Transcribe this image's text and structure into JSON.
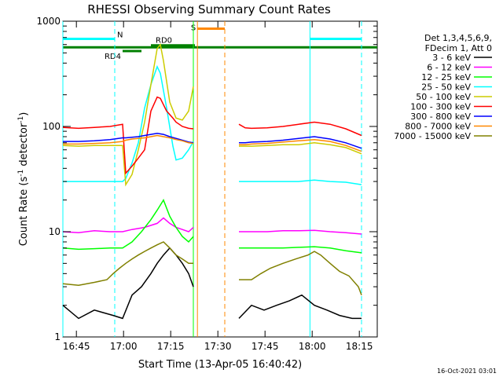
{
  "chart_data": {
    "type": "line",
    "title": "RHESSI Observing Summary Count Rates",
    "xlabel": "Start Time (13-Apr-05 16:40:42)",
    "ylabel_main": "Count Rate (s",
    "ylabel_sup1": "-1",
    "ylabel_mid": " detector",
    "ylabel_sup2": "-1",
    "ylabel_end": ")",
    "x_unit": "minutes since 16:40:42",
    "xlim": [
      0,
      100
    ],
    "ylim": [
      1,
      1000
    ],
    "y_scale": "log",
    "x_ticks": [
      {
        "label": "16:45",
        "at": 4.3
      },
      {
        "label": "17:00",
        "at": 19.3
      },
      {
        "label": "17:15",
        "at": 34.3
      },
      {
        "label": "17:30",
        "at": 49.3
      },
      {
        "label": "17:45",
        "at": 64.3
      },
      {
        "label": "18:00",
        "at": 79.3
      },
      {
        "label": "18:15",
        "at": 94.3
      }
    ],
    "y_ticks": [
      {
        "label": "1",
        "at": 1
      },
      {
        "label": "10",
        "at": 10
      },
      {
        "label": "100",
        "at": 100
      },
      {
        "label": "1000",
        "at": 1000
      }
    ],
    "legend_header": [
      "Det 1,3,4,5,6,9,",
      "FDecim 1, Att 0"
    ],
    "legend_position": "right",
    "series": [
      {
        "name": "3 - 6 keV",
        "color": "#000000",
        "points": [
          [
            0,
            2
          ],
          [
            5,
            1.5
          ],
          [
            10,
            1.8
          ],
          [
            16,
            1.6
          ],
          [
            19,
            1.5
          ],
          [
            22,
            2.5
          ],
          [
            25,
            3
          ],
          [
            28,
            4
          ],
          [
            30,
            5
          ],
          [
            32,
            6
          ],
          [
            34,
            7
          ],
          [
            36,
            6
          ],
          [
            38,
            5
          ],
          [
            40,
            4
          ],
          [
            41.5,
            3
          ],
          [
            56,
            1.5
          ],
          [
            60,
            2
          ],
          [
            64,
            1.8
          ],
          [
            68,
            2
          ],
          [
            72,
            2.2
          ],
          [
            76,
            2.5
          ],
          [
            80,
            2
          ],
          [
            84,
            1.8
          ],
          [
            88,
            1.6
          ],
          [
            92,
            1.5
          ],
          [
            95,
            1.5
          ]
        ]
      },
      {
        "name": "6 - 12 keV",
        "color": "#ff00ff",
        "points": [
          [
            0,
            10
          ],
          [
            5,
            9.8
          ],
          [
            10,
            10.2
          ],
          [
            15,
            10
          ],
          [
            19,
            10
          ],
          [
            22,
            10.5
          ],
          [
            26,
            11
          ],
          [
            30,
            12
          ],
          [
            32,
            13.5
          ],
          [
            34,
            12
          ],
          [
            36,
            11
          ],
          [
            38,
            10.5
          ],
          [
            40,
            10
          ],
          [
            41.5,
            11
          ],
          [
            56,
            10
          ],
          [
            60,
            10
          ],
          [
            65,
            10
          ],
          [
            70,
            10.2
          ],
          [
            75,
            10.2
          ],
          [
            80,
            10.3
          ],
          [
            85,
            10
          ],
          [
            90,
            9.8
          ],
          [
            95,
            9.5
          ]
        ]
      },
      {
        "name": "12 - 25 keV",
        "color": "#00ff00",
        "points": [
          [
            0,
            7
          ],
          [
            5,
            6.8
          ],
          [
            10,
            6.9
          ],
          [
            15,
            7
          ],
          [
            19,
            7
          ],
          [
            22,
            8
          ],
          [
            25,
            10
          ],
          [
            28,
            13
          ],
          [
            30,
            16
          ],
          [
            32,
            20
          ],
          [
            34,
            14
          ],
          [
            36,
            11
          ],
          [
            38,
            9
          ],
          [
            40,
            8
          ],
          [
            41.5,
            9
          ],
          [
            56,
            7
          ],
          [
            60,
            7
          ],
          [
            65,
            7
          ],
          [
            70,
            7
          ],
          [
            75,
            7.1
          ],
          [
            80,
            7.2
          ],
          [
            85,
            7
          ],
          [
            90,
            6.6
          ],
          [
            95,
            6.3
          ]
        ]
      },
      {
        "name": "25 - 50 keV",
        "color": "#00ffff",
        "points": [
          [
            0,
            30
          ],
          [
            5,
            30
          ],
          [
            10,
            30
          ],
          [
            15,
            30
          ],
          [
            19,
            30
          ],
          [
            20,
            32
          ],
          [
            22,
            45
          ],
          [
            24,
            70
          ],
          [
            26,
            150
          ],
          [
            28,
            250
          ],
          [
            30,
            370
          ],
          [
            31,
            320
          ],
          [
            33,
            150
          ],
          [
            35,
            65
          ],
          [
            36,
            48
          ],
          [
            38,
            50
          ],
          [
            40,
            60
          ],
          [
            41.5,
            72
          ],
          [
            56,
            30
          ],
          [
            60,
            30
          ],
          [
            65,
            30
          ],
          [
            70,
            30
          ],
          [
            75,
            30
          ],
          [
            80,
            31
          ],
          [
            85,
            30
          ],
          [
            90,
            29.5
          ],
          [
            95,
            28
          ]
        ]
      },
      {
        "name": "50 - 100 keV",
        "color": "#cccc00",
        "points": [
          [
            0,
            66
          ],
          [
            5,
            65
          ],
          [
            10,
            66
          ],
          [
            15,
            66
          ],
          [
            19,
            66
          ],
          [
            20,
            28
          ],
          [
            22,
            35
          ],
          [
            24,
            60
          ],
          [
            26,
            110
          ],
          [
            28,
            250
          ],
          [
            30,
            550
          ],
          [
            31,
            600
          ],
          [
            32,
            420
          ],
          [
            34,
            170
          ],
          [
            36,
            120
          ],
          [
            38,
            115
          ],
          [
            40,
            140
          ],
          [
            41,
            200
          ],
          [
            41.5,
            240
          ],
          [
            56,
            65
          ],
          [
            60,
            65
          ],
          [
            65,
            66
          ],
          [
            70,
            67
          ],
          [
            75,
            67
          ],
          [
            80,
            70
          ],
          [
            85,
            67
          ],
          [
            90,
            63
          ],
          [
            95,
            55
          ]
        ]
      },
      {
        "name": "100 - 300 keV",
        "color": "#ff0000",
        "points": [
          [
            0,
            98
          ],
          [
            5,
            96
          ],
          [
            10,
            98
          ],
          [
            15,
            100
          ],
          [
            19,
            105
          ],
          [
            20,
            36
          ],
          [
            22,
            42
          ],
          [
            24,
            50
          ],
          [
            26,
            60
          ],
          [
            28,
            140
          ],
          [
            30,
            190
          ],
          [
            31,
            185
          ],
          [
            33,
            140
          ],
          [
            35,
            120
          ],
          [
            36,
            110
          ],
          [
            38,
            100
          ],
          [
            40,
            96
          ],
          [
            41.5,
            95
          ],
          [
            56,
            105
          ],
          [
            58,
            97
          ],
          [
            60,
            96
          ],
          [
            65,
            97
          ],
          [
            70,
            100
          ],
          [
            75,
            105
          ],
          [
            80,
            110
          ],
          [
            85,
            105
          ],
          [
            90,
            95
          ],
          [
            95,
            82
          ]
        ]
      },
      {
        "name": "300 - 800 keV",
        "color": "#0000ff",
        "points": [
          [
            0,
            72
          ],
          [
            5,
            72
          ],
          [
            10,
            73
          ],
          [
            15,
            75
          ],
          [
            19,
            78
          ],
          [
            20,
            78
          ],
          [
            22,
            79
          ],
          [
            24,
            80
          ],
          [
            26,
            82
          ],
          [
            28,
            84
          ],
          [
            30,
            86
          ],
          [
            32,
            84
          ],
          [
            34,
            80
          ],
          [
            36,
            77
          ],
          [
            38,
            74
          ],
          [
            40,
            71
          ],
          [
            41.5,
            70
          ],
          [
            56,
            70
          ],
          [
            58,
            70
          ],
          [
            60,
            71
          ],
          [
            65,
            72
          ],
          [
            70,
            74
          ],
          [
            75,
            77
          ],
          [
            80,
            80
          ],
          [
            85,
            76
          ],
          [
            90,
            70
          ],
          [
            95,
            62
          ]
        ]
      },
      {
        "name": "800 - 7000 keV",
        "color": "#ff8800",
        "points": [
          [
            0,
            68
          ],
          [
            5,
            68
          ],
          [
            10,
            69
          ],
          [
            15,
            70
          ],
          [
            19,
            72
          ],
          [
            20,
            74
          ],
          [
            22,
            76
          ],
          [
            24,
            77
          ],
          [
            26,
            78
          ],
          [
            28,
            80
          ],
          [
            30,
            82
          ],
          [
            32,
            80
          ],
          [
            34,
            78
          ],
          [
            36,
            75
          ],
          [
            38,
            73
          ],
          [
            40,
            70
          ],
          [
            41.5,
            69
          ],
          [
            56,
            67
          ],
          [
            58,
            67
          ],
          [
            60,
            68
          ],
          [
            65,
            69
          ],
          [
            70,
            71
          ],
          [
            75,
            73
          ],
          [
            80,
            75
          ],
          [
            85,
            72
          ],
          [
            90,
            66
          ],
          [
            95,
            58
          ]
        ]
      },
      {
        "name": "7000 - 15000 keV",
        "color": "#808000",
        "points": [
          [
            0,
            3.2
          ],
          [
            5,
            3.1
          ],
          [
            10,
            3.3
          ],
          [
            14,
            3.5
          ],
          [
            16,
            4
          ],
          [
            18,
            4.5
          ],
          [
            20,
            5
          ],
          [
            22,
            5.5
          ],
          [
            24,
            6
          ],
          [
            26,
            6.5
          ],
          [
            28,
            7
          ],
          [
            30,
            7.5
          ],
          [
            32,
            8
          ],
          [
            34,
            7
          ],
          [
            36,
            6
          ],
          [
            38,
            5.5
          ],
          [
            40,
            5
          ],
          [
            41.5,
            5
          ],
          [
            56,
            3.5
          ],
          [
            60,
            3.5
          ],
          [
            63,
            4
          ],
          [
            66,
            4.5
          ],
          [
            70,
            5
          ],
          [
            74,
            5.5
          ],
          [
            78,
            6
          ],
          [
            80,
            6.5
          ],
          [
            82,
            6
          ],
          [
            85,
            5
          ],
          [
            88,
            4.2
          ],
          [
            91,
            3.8
          ],
          [
            94,
            3
          ],
          [
            95,
            2.5
          ]
        ]
      }
    ],
    "annotations": [
      {
        "kind": "segment",
        "label": "N",
        "color": "#00ffff",
        "x1": 0,
        "x2": 16.5,
        "y": 680
      },
      {
        "kind": "segment",
        "label": "",
        "color": "#00ffff",
        "x1": 78.6,
        "x2": 95,
        "y": 680
      },
      {
        "kind": "segment",
        "label": "S",
        "color": "#ff8800",
        "x1": 42.8,
        "x2": 51.5,
        "y": 850
      },
      {
        "kind": "segment",
        "label": "RD0",
        "color": "#008000",
        "x1": 28,
        "x2": 42,
        "y": 590
      },
      {
        "kind": "segment",
        "label": "RD4",
        "color": "#008000",
        "x1": 19,
        "x2": 25,
        "y": 520
      },
      {
        "kind": "segment",
        "label": "",
        "color": "#008000",
        "x1": 0,
        "x2": 100,
        "y": 565
      },
      {
        "kind": "vline",
        "label": "",
        "color": "#00ffff",
        "style": "dashed",
        "x": 16.5
      },
      {
        "kind": "vline",
        "label": "",
        "color": "#00ffff",
        "style": "dashed",
        "x": 95
      },
      {
        "kind": "vline",
        "label": "",
        "color": "#00ffff",
        "style": "solid",
        "x": 0
      },
      {
        "kind": "vline",
        "label": "",
        "color": "#00ffff",
        "style": "solid",
        "x": 78.6
      },
      {
        "kind": "vline",
        "label": "",
        "color": "#ff8800",
        "style": "solid",
        "x": 42.8
      },
      {
        "kind": "vline",
        "label": "",
        "color": "#ff8800",
        "style": "dashed",
        "x": 51.5
      },
      {
        "kind": "vline",
        "label": "",
        "color": "#00ff00",
        "style": "solid",
        "x": 41.5
      }
    ]
  },
  "footer": {
    "date": "16-Oct-2021 03:01"
  }
}
